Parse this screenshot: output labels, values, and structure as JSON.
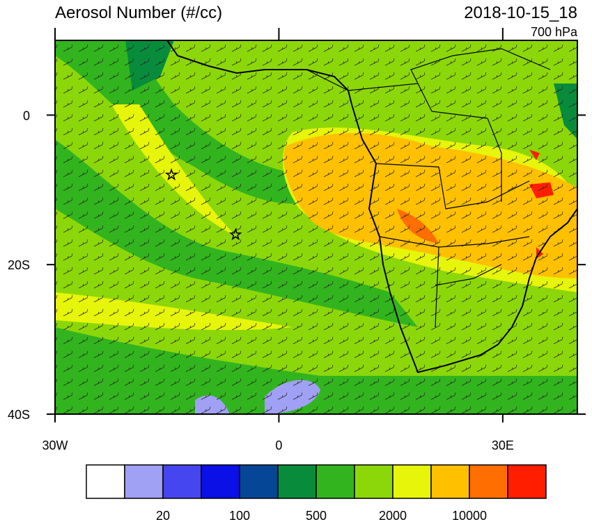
{
  "title": "Aerosol Number (#/cc)",
  "time": "2018-10-15_18",
  "level": "700 hPa",
  "map": {
    "lon_range": [
      -30,
      40
    ],
    "lat_range": [
      -40,
      10
    ],
    "lat_ticks": [
      {
        "value": 0,
        "label": "0"
      },
      {
        "value": -20,
        "label": "20S"
      },
      {
        "value": -40,
        "label": "40S"
      }
    ],
    "lon_ticks": [
      {
        "value": -30,
        "label": "30W"
      },
      {
        "value": 0,
        "label": "0"
      },
      {
        "value": 30,
        "label": "30E"
      }
    ],
    "markers": [
      {
        "lon": -14.4,
        "lat": -8
      },
      {
        "lon": -5.8,
        "lat": -16
      }
    ]
  },
  "colorbar": {
    "colors": [
      "#ffffff",
      "#a0a0f5",
      "#4646f0",
      "#0a10e6",
      "#064696",
      "#088c3c",
      "#32b41e",
      "#8cd70a",
      "#e6f50a",
      "#ffc000",
      "#ff6e00",
      "#ff1e00"
    ],
    "labels": [
      "20",
      "100",
      "500",
      "2000",
      "10000"
    ]
  }
}
